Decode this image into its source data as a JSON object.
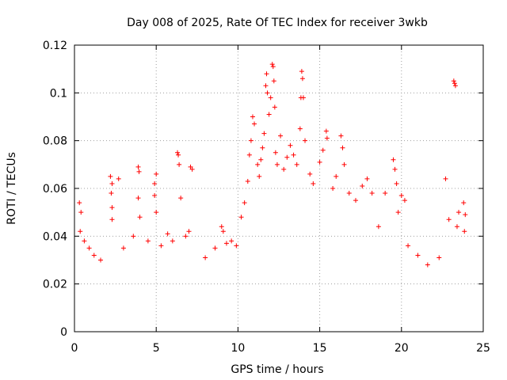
{
  "chart_data": {
    "type": "scatter",
    "title": "Day 008 of 2025, Rate Of TEC Index for receiver 3wkb",
    "xlabel": "GPS time / hours",
    "ylabel": "ROTI / TECUs",
    "xlim": [
      0,
      25
    ],
    "ylim": [
      0,
      0.12
    ],
    "x_ticks": [
      0,
      5,
      10,
      15,
      20,
      25
    ],
    "x_tick_labels": [
      "0",
      "5",
      "10",
      "15",
      "20",
      "25"
    ],
    "y_ticks": [
      0,
      0.02,
      0.04,
      0.06,
      0.08,
      0.1,
      0.12
    ],
    "y_tick_labels": [
      "0",
      "0.02",
      "0.04",
      "0.06",
      "0.08",
      "0.1",
      "0.12"
    ],
    "grid": true,
    "marker": "+",
    "marker_color": "#ff0000",
    "series": [
      {
        "points": [
          [
            0.3,
            0.054
          ],
          [
            0.4,
            0.05
          ],
          [
            0.35,
            0.042
          ],
          [
            0.6,
            0.038
          ],
          [
            0.9,
            0.035
          ],
          [
            1.2,
            0.032
          ],
          [
            1.6,
            0.03
          ],
          [
            2.2,
            0.065
          ],
          [
            2.3,
            0.062
          ],
          [
            2.25,
            0.058
          ],
          [
            2.3,
            0.052
          ],
          [
            2.3,
            0.047
          ],
          [
            2.7,
            0.064
          ],
          [
            3.0,
            0.035
          ],
          [
            3.6,
            0.04
          ],
          [
            3.9,
            0.069
          ],
          [
            3.95,
            0.067
          ],
          [
            3.9,
            0.056
          ],
          [
            4.0,
            0.048
          ],
          [
            4.5,
            0.038
          ],
          [
            4.9,
            0.062
          ],
          [
            5.0,
            0.066
          ],
          [
            4.9,
            0.057
          ],
          [
            5.0,
            0.05
          ],
          [
            5.3,
            0.036
          ],
          [
            5.7,
            0.041
          ],
          [
            6.0,
            0.038
          ],
          [
            6.3,
            0.075
          ],
          [
            6.35,
            0.074
          ],
          [
            6.4,
            0.07
          ],
          [
            6.5,
            0.056
          ],
          [
            6.8,
            0.04
          ],
          [
            7.1,
            0.069
          ],
          [
            7.2,
            0.068
          ],
          [
            7.0,
            0.042
          ],
          [
            8.0,
            0.031
          ],
          [
            8.6,
            0.035
          ],
          [
            9.0,
            0.044
          ],
          [
            9.1,
            0.042
          ],
          [
            9.3,
            0.037
          ],
          [
            9.6,
            0.038
          ],
          [
            9.9,
            0.036
          ],
          [
            10.2,
            0.048
          ],
          [
            10.4,
            0.054
          ],
          [
            10.6,
            0.063
          ],
          [
            10.7,
            0.074
          ],
          [
            10.8,
            0.08
          ],
          [
            10.9,
            0.09
          ],
          [
            11.0,
            0.087
          ],
          [
            11.2,
            0.07
          ],
          [
            11.3,
            0.065
          ],
          [
            11.4,
            0.072
          ],
          [
            11.5,
            0.077
          ],
          [
            11.6,
            0.083
          ],
          [
            11.7,
            0.103
          ],
          [
            11.75,
            0.108
          ],
          [
            11.8,
            0.1
          ],
          [
            11.9,
            0.091
          ],
          [
            12.0,
            0.098
          ],
          [
            12.1,
            0.112
          ],
          [
            12.15,
            0.111
          ],
          [
            12.2,
            0.105
          ],
          [
            12.25,
            0.094
          ],
          [
            12.3,
            0.075
          ],
          [
            12.4,
            0.07
          ],
          [
            12.6,
            0.082
          ],
          [
            12.8,
            0.068
          ],
          [
            13.0,
            0.073
          ],
          [
            13.2,
            0.078
          ],
          [
            13.4,
            0.074
          ],
          [
            13.6,
            0.07
          ],
          [
            13.8,
            0.085
          ],
          [
            13.85,
            0.098
          ],
          [
            13.9,
            0.109
          ],
          [
            13.95,
            0.106
          ],
          [
            14.0,
            0.098
          ],
          [
            14.1,
            0.08
          ],
          [
            14.4,
            0.066
          ],
          [
            14.6,
            0.062
          ],
          [
            15.0,
            0.071
          ],
          [
            15.2,
            0.076
          ],
          [
            15.4,
            0.084
          ],
          [
            15.45,
            0.081
          ],
          [
            15.8,
            0.06
          ],
          [
            16.0,
            0.065
          ],
          [
            16.3,
            0.082
          ],
          [
            16.4,
            0.077
          ],
          [
            16.5,
            0.07
          ],
          [
            16.8,
            0.058
          ],
          [
            17.2,
            0.055
          ],
          [
            17.6,
            0.061
          ],
          [
            17.9,
            0.064
          ],
          [
            18.2,
            0.058
          ],
          [
            18.6,
            0.044
          ],
          [
            19.0,
            0.058
          ],
          [
            19.5,
            0.072
          ],
          [
            19.6,
            0.068
          ],
          [
            19.7,
            0.062
          ],
          [
            19.8,
            0.05
          ],
          [
            20.0,
            0.057
          ],
          [
            20.2,
            0.055
          ],
          [
            20.4,
            0.036
          ],
          [
            21.0,
            0.032
          ],
          [
            21.6,
            0.028
          ],
          [
            22.3,
            0.031
          ],
          [
            22.7,
            0.064
          ],
          [
            22.9,
            0.047
          ],
          [
            23.2,
            0.105
          ],
          [
            23.25,
            0.104
          ],
          [
            23.3,
            0.103
          ],
          [
            23.4,
            0.044
          ],
          [
            23.5,
            0.05
          ],
          [
            23.8,
            0.054
          ],
          [
            23.9,
            0.049
          ],
          [
            23.85,
            0.042
          ]
        ]
      }
    ]
  }
}
